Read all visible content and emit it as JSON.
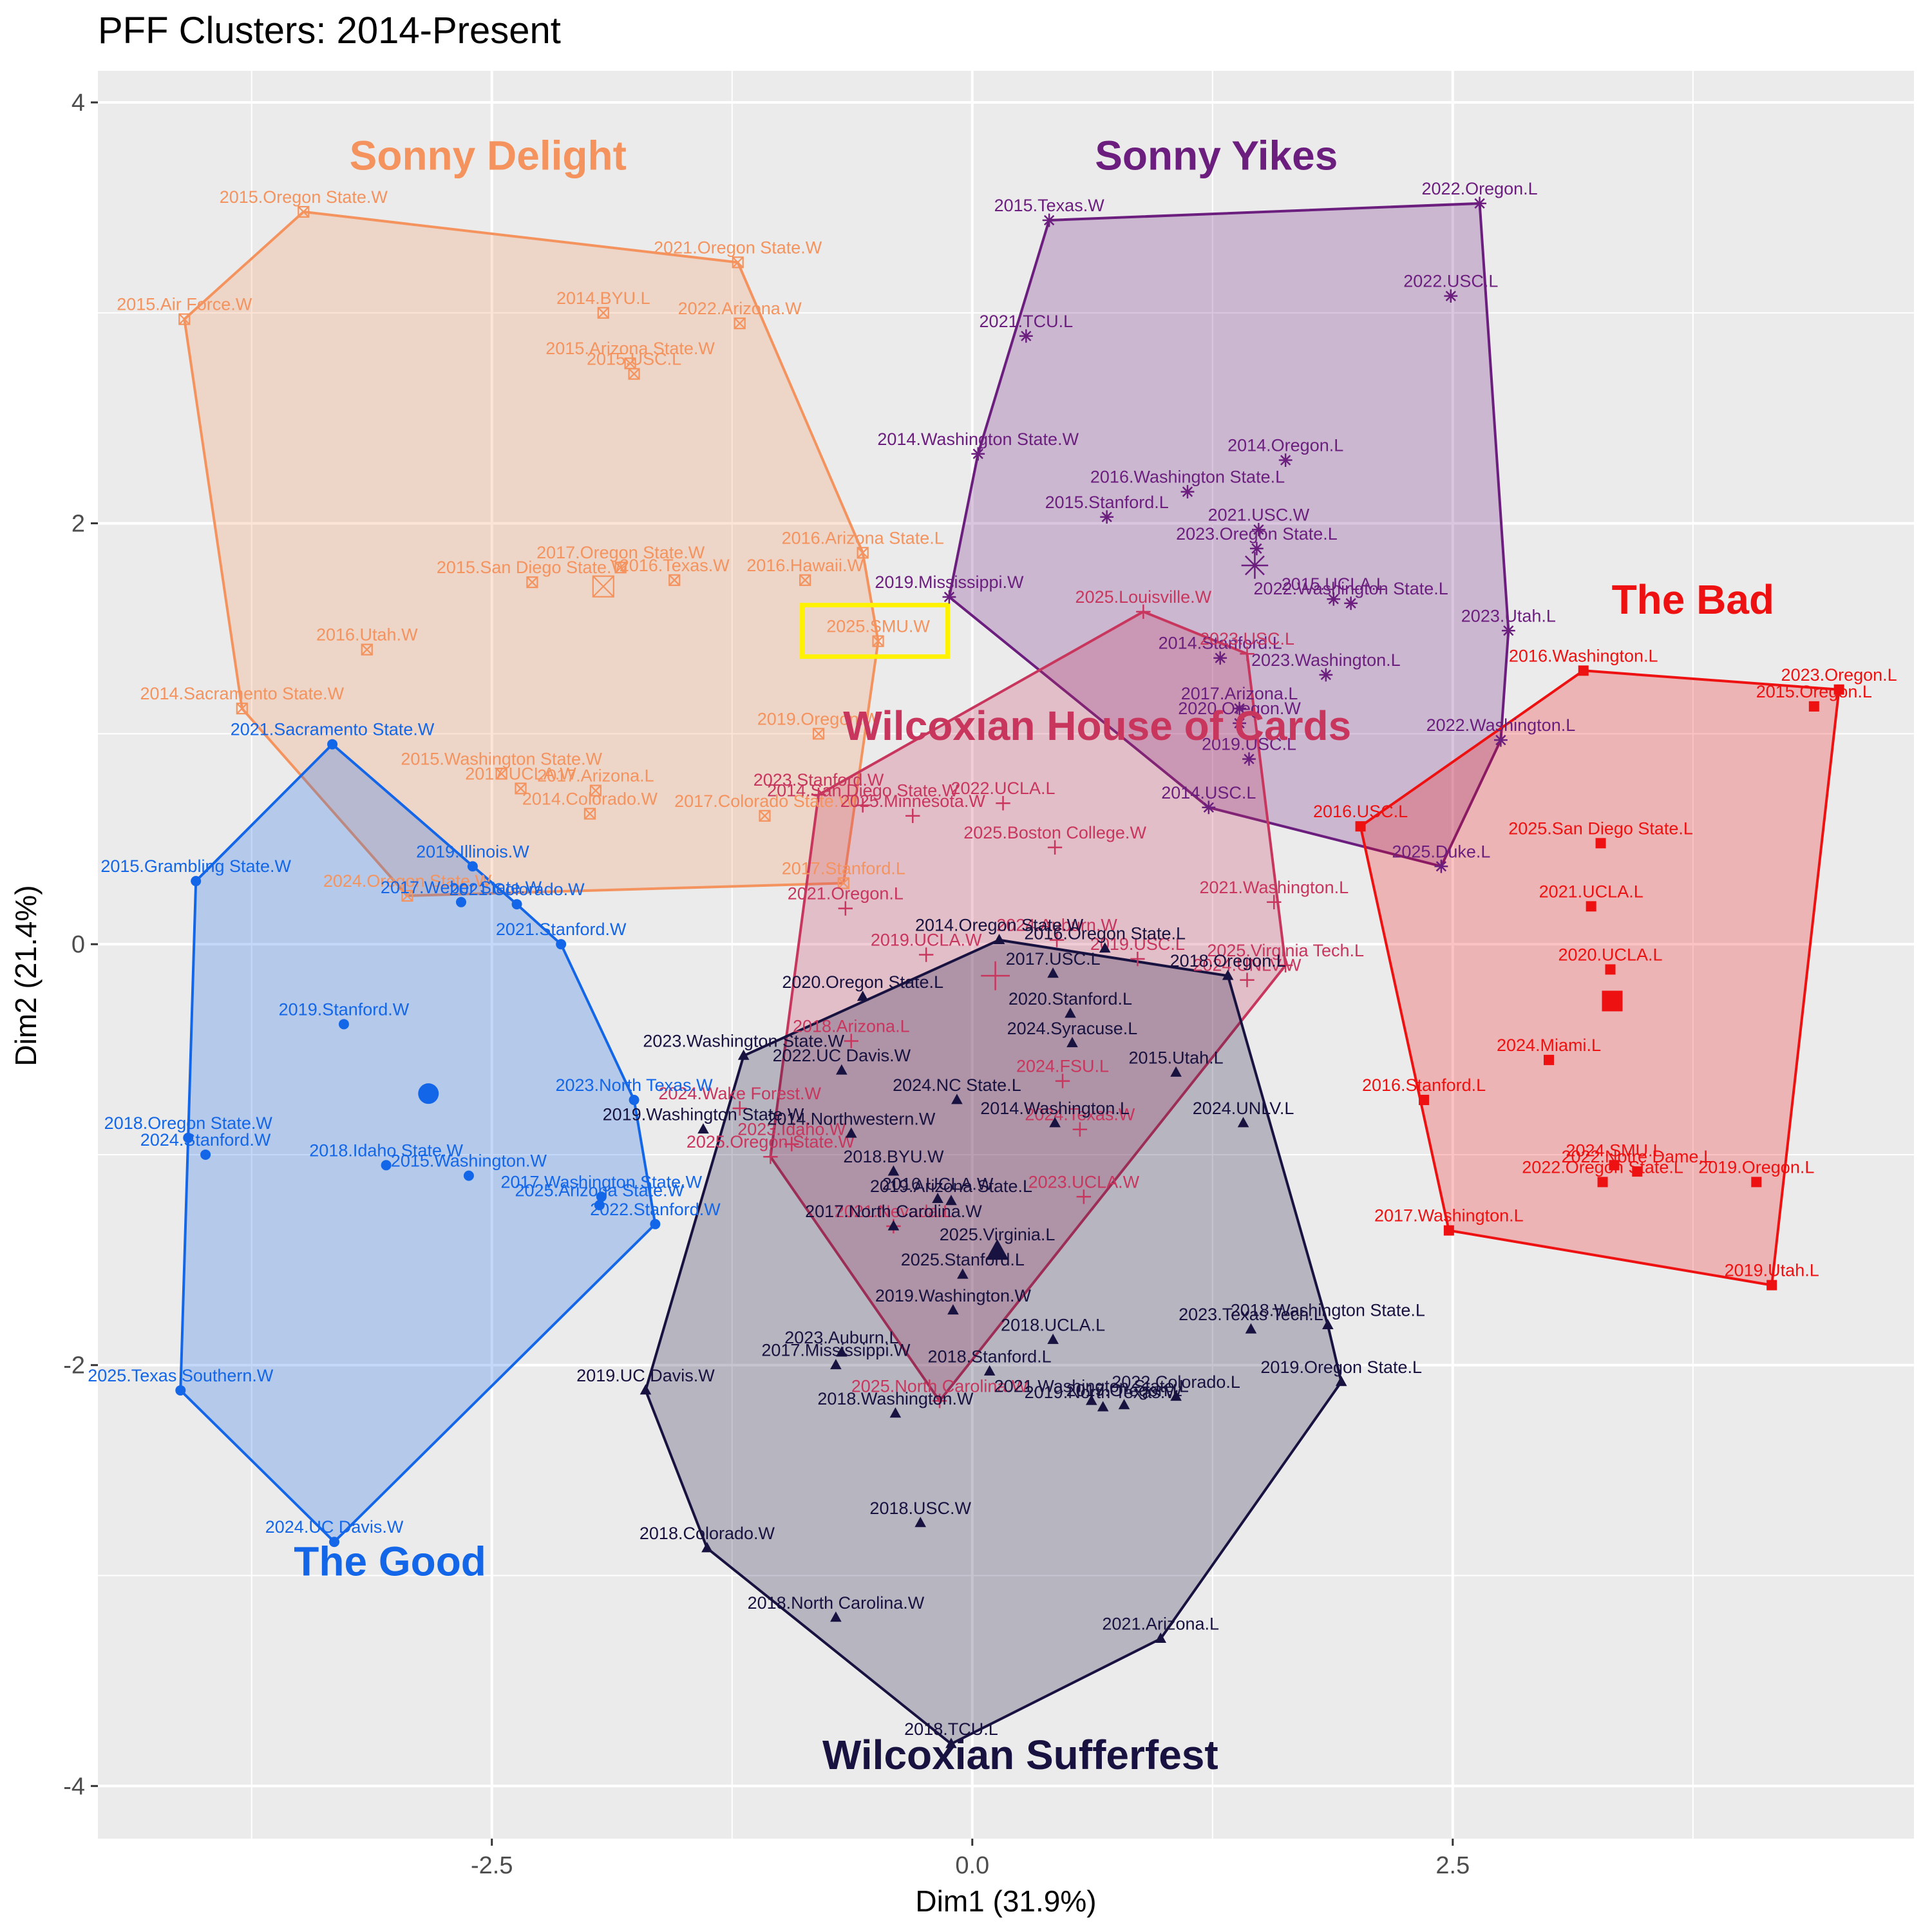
{
  "chart_data": {
    "type": "scatter",
    "title": "PFF Clusters: 2014-Present",
    "xlabel": "Dim1 (31.9%)",
    "ylabel": "Dim2 (21.4%)",
    "xlim": [
      -4.55,
      4.9
    ],
    "ylim": [
      -4.25,
      4.15
    ],
    "x_ticks": [
      -2.5,
      0.0,
      2.5
    ],
    "x_tick_labels": [
      "-2.5",
      "0.0",
      "2.5"
    ],
    "y_ticks": [
      -4,
      -2,
      0,
      2,
      4
    ],
    "y_tick_labels": [
      "-4",
      "-2",
      "0",
      "2",
      "4"
    ],
    "grid": true,
    "highlight_label": "2025.SMU.W",
    "series": [
      {
        "name": "Sonny Delight",
        "color": "#F4935E",
        "marker": "boxx",
        "centroid": [
          -1.92,
          1.7
        ],
        "points": [
          {
            "label": "2015.Oregon State.W",
            "x": -3.48,
            "y": 3.48
          },
          {
            "label": "2021.Oregon State.W",
            "x": -1.22,
            "y": 3.24
          },
          {
            "label": "2015.Air Force.W",
            "x": -4.1,
            "y": 2.97
          },
          {
            "label": "2014.BYU.L",
            "x": -1.92,
            "y": 3.0
          },
          {
            "label": "2022.Arizona.W",
            "x": -1.21,
            "y": 2.95
          },
          {
            "label": "2015.Arizona State.W",
            "x": -1.78,
            "y": 2.76
          },
          {
            "label": "2015.USC.L",
            "x": -1.76,
            "y": 2.71
          },
          {
            "label": "2016.Arizona State.L",
            "x": -0.57,
            "y": 1.86
          },
          {
            "label": "2017.Oregon State.W",
            "x": -1.83,
            "y": 1.79
          },
          {
            "label": "2016.Texas.W",
            "x": -1.55,
            "y": 1.73
          },
          {
            "label": "2015.San Diego State.W",
            "x": -2.29,
            "y": 1.72
          },
          {
            "label": "2016.Hawaii.W",
            "x": -0.87,
            "y": 1.73
          },
          {
            "label": "2025.SMU.W",
            "x": -0.49,
            "y": 1.44
          },
          {
            "label": "2016.Utah.W",
            "x": -3.15,
            "y": 1.4
          },
          {
            "label": "2014.Sacramento State.W",
            "x": -3.8,
            "y": 1.12
          },
          {
            "label": "2019.Oregon.W",
            "x": -0.8,
            "y": 1.0
          },
          {
            "label": "2015.Washington State.W",
            "x": -2.45,
            "y": 0.81
          },
          {
            "label": "2017.UCLA.W",
            "x": -2.35,
            "y": 0.74
          },
          {
            "label": "2017.Arizona.L",
            "x": -1.96,
            "y": 0.73
          },
          {
            "label": "2014.Colorado.W",
            "x": -1.99,
            "y": 0.62
          },
          {
            "label": "2017.Colorado State.W",
            "x": -1.08,
            "y": 0.61
          },
          {
            "label": "2017.Stanford.L",
            "x": -0.67,
            "y": 0.29
          },
          {
            "label": "2024.Oregon State.W",
            "x": -2.94,
            "y": 0.23
          }
        ]
      },
      {
        "name": "Sonny Yikes",
        "color": "#6B1E7E",
        "marker": "star",
        "centroid": [
          1.47,
          1.8
        ],
        "points": [
          {
            "label": "2015.Texas.W",
            "x": 0.4,
            "y": 3.44
          },
          {
            "label": "2022.Oregon.L",
            "x": 2.64,
            "y": 3.52
          },
          {
            "label": "2022.USC.L",
            "x": 2.49,
            "y": 3.08
          },
          {
            "label": "2021.TCU.L",
            "x": 0.28,
            "y": 2.89
          },
          {
            "label": "2014.Washington State.W",
            "x": 0.03,
            "y": 2.33
          },
          {
            "label": "2014.Oregon.L",
            "x": 1.63,
            "y": 2.3
          },
          {
            "label": "2016.Washington State.L",
            "x": 1.12,
            "y": 2.15
          },
          {
            "label": "2015.Stanford.L",
            "x": 0.7,
            "y": 2.03
          },
          {
            "label": "2021.USC.W",
            "x": 1.49,
            "y": 1.97
          },
          {
            "label": "2023.Oregon State.L",
            "x": 1.48,
            "y": 1.88
          },
          {
            "label": "2019.Mississippi.W",
            "x": -0.12,
            "y": 1.65
          },
          {
            "label": "2015.UCLA.L",
            "x": 1.88,
            "y": 1.64
          },
          {
            "label": "2022.Washington State.L",
            "x": 1.97,
            "y": 1.62
          },
          {
            "label": "2023.Utah.L",
            "x": 2.79,
            "y": 1.49
          },
          {
            "label": "2014.Stanford.L",
            "x": 1.29,
            "y": 1.36
          },
          {
            "label": "2023.Washington.L",
            "x": 1.84,
            "y": 1.28
          },
          {
            "label": "2017.Arizona.L",
            "x": 1.39,
            "y": 1.12
          },
          {
            "label": "2020.Oregon.W",
            "x": 1.39,
            "y": 1.05
          },
          {
            "label": "2019.USC.L",
            "x": 1.44,
            "y": 0.88
          },
          {
            "label": "2022.Washington.L",
            "x": 2.75,
            "y": 0.97
          },
          {
            "label": "2014.USC.L",
            "x": 1.23,
            "y": 0.65
          },
          {
            "label": "2025.Duke.L",
            "x": 2.44,
            "y": 0.37
          }
        ]
      },
      {
        "name": "Wilcoxian House of Cards",
        "color": "#C8365E",
        "marker": "plus",
        "centroid": [
          0.12,
          -0.15
        ],
        "points": [
          {
            "label": "2025.Louisville.W",
            "x": 0.89,
            "y": 1.58
          },
          {
            "label": "2023.USC.L",
            "x": 1.43,
            "y": 1.38
          },
          {
            "label": "2023.Stanford.W",
            "x": -0.8,
            "y": 0.71
          },
          {
            "label": "2014.San Diego State.W",
            "x": -0.57,
            "y": 0.66
          },
          {
            "label": "2022.UCLA.L",
            "x": 0.16,
            "y": 0.67
          },
          {
            "label": "2025.Minnesota.W",
            "x": -0.31,
            "y": 0.61
          },
          {
            "label": "2025.Boston College.W",
            "x": 0.43,
            "y": 0.46
          },
          {
            "label": "2021.Oregon.L",
            "x": -0.66,
            "y": 0.17
          },
          {
            "label": "2021.Washington.L",
            "x": 1.57,
            "y": 0.2
          },
          {
            "label": "2024.Auburn.W",
            "x": 0.44,
            "y": 0.02
          },
          {
            "label": "2019.UCLA.W",
            "x": -0.24,
            "y": -0.05
          },
          {
            "label": "2019.USC.L",
            "x": 0.86,
            "y": -0.07
          },
          {
            "label": "2025.Virginia Tech.L",
            "x": 1.63,
            "y": -0.1
          },
          {
            "label": "2024.UNLV.W",
            "x": 1.43,
            "y": -0.17
          },
          {
            "label": "2018.Arizona.L",
            "x": -0.63,
            "y": -0.46
          },
          {
            "label": "2024.FSU.L",
            "x": 0.47,
            "y": -0.65
          },
          {
            "label": "2024.Wake Forest.W",
            "x": -1.21,
            "y": -0.78
          },
          {
            "label": "2023.Idaho.W",
            "x": -0.94,
            "y": -0.95
          },
          {
            "label": "2025.Oregon State.W",
            "x": -1.05,
            "y": -1.01
          },
          {
            "label": "2024.Texas.W",
            "x": 0.56,
            "y": -0.88
          },
          {
            "label": "2023.UCLA.W",
            "x": 0.58,
            "y": -1.2
          },
          {
            "label": "2021.Nevada.L",
            "x": -0.41,
            "y": -1.34
          },
          {
            "label": "2025.North Carolina.W",
            "x": -0.17,
            "y": -2.17
          }
        ]
      },
      {
        "name": "The Bad",
        "color": "#EE1111",
        "marker": "square",
        "centroid": [
          3.33,
          -0.27
        ],
        "points": [
          {
            "label": "2016.Washington.L",
            "x": 3.18,
            "y": 1.3
          },
          {
            "label": "2023.Oregon.L",
            "x": 4.51,
            "y": 1.21
          },
          {
            "label": "2015.Oregon.L",
            "x": 4.38,
            "y": 1.13
          },
          {
            "label": "2016.USC.L",
            "x": 2.02,
            "y": 0.56
          },
          {
            "label": "2025.San Diego State.L",
            "x": 3.27,
            "y": 0.48
          },
          {
            "label": "2021.UCLA.L",
            "x": 3.22,
            "y": 0.18
          },
          {
            "label": "2020.UCLA.L",
            "x": 3.32,
            "y": -0.12
          },
          {
            "label": "2024.Miami.L",
            "x": 3.0,
            "y": -0.55
          },
          {
            "label": "2016.Stanford.L",
            "x": 2.35,
            "y": -0.74
          },
          {
            "label": "2024.SMU.L",
            "x": 3.34,
            "y": -1.05
          },
          {
            "label": "2022.Notre Dame.L",
            "x": 3.46,
            "y": -1.08
          },
          {
            "label": "2022.Oregon State.L",
            "x": 3.28,
            "y": -1.13
          },
          {
            "label": "2019.Oregon.L",
            "x": 4.08,
            "y": -1.13
          },
          {
            "label": "2017.Washington.L",
            "x": 2.48,
            "y": -1.36
          },
          {
            "label": "2019.Utah.L",
            "x": 4.16,
            "y": -1.62
          }
        ]
      },
      {
        "name": "The Good",
        "color": "#1366E8",
        "marker": "circle",
        "centroid": [
          -2.83,
          -0.71
        ],
        "points": [
          {
            "label": "2021.Sacramento State.W",
            "x": -3.33,
            "y": 0.95
          },
          {
            "label": "2015.Grambling State.W",
            "x": -4.04,
            "y": 0.3
          },
          {
            "label": "2019.Illinois.W",
            "x": -2.6,
            "y": 0.37
          },
          {
            "label": "2017.Weber State.W",
            "x": -2.66,
            "y": 0.2
          },
          {
            "label": "2021.Colorado.W",
            "x": -2.37,
            "y": 0.19
          },
          {
            "label": "2021.Stanford.W",
            "x": -2.14,
            "y": 0.0
          },
          {
            "label": "2019.Stanford.W",
            "x": -3.27,
            "y": -0.38
          },
          {
            "label": "2023.North Texas.W",
            "x": -1.76,
            "y": -0.74
          },
          {
            "label": "2018.Oregon State.W",
            "x": -4.08,
            "y": -0.92
          },
          {
            "label": "2024.Stanford.W",
            "x": -3.99,
            "y": -1.0
          },
          {
            "label": "2018.Idaho State.W",
            "x": -3.05,
            "y": -1.05
          },
          {
            "label": "2015.Washington.W",
            "x": -2.62,
            "y": -1.1
          },
          {
            "label": "2017.Washington State.W",
            "x": -1.93,
            "y": -1.2
          },
          {
            "label": "2025.Arizona State.W",
            "x": -1.94,
            "y": -1.24
          },
          {
            "label": "2022.Stanford.W",
            "x": -1.65,
            "y": -1.33
          },
          {
            "label": "2025.Texas Southern.W",
            "x": -4.12,
            "y": -2.12
          },
          {
            "label": "2024.UC Davis.W",
            "x": -3.32,
            "y": -2.84
          }
        ]
      },
      {
        "name": "Wilcoxian Sufferfest",
        "color": "#17123F",
        "marker": "triangle",
        "centroid": [
          0.13,
          -1.46
        ],
        "points": [
          {
            "label": "2014.Oregon State.W",
            "x": 0.14,
            "y": 0.02
          },
          {
            "label": "2016.Oregon State.L",
            "x": 0.69,
            "y": -0.02
          },
          {
            "label": "2017.USC.L",
            "x": 0.42,
            "y": -0.14
          },
          {
            "label": "2018.Oregon.L",
            "x": 1.33,
            "y": -0.15
          },
          {
            "label": "2020.Oregon State.L",
            "x": -0.57,
            "y": -0.25
          },
          {
            "label": "2020.Stanford.L",
            "x": 0.51,
            "y": -0.33
          },
          {
            "label": "2024.Syracuse.L",
            "x": 0.52,
            "y": -0.47
          },
          {
            "label": "2023.Washington State.W",
            "x": -1.19,
            "y": -0.53
          },
          {
            "label": "2022.UC Davis.W",
            "x": -0.68,
            "y": -0.6
          },
          {
            "label": "2015.Utah.L",
            "x": 1.06,
            "y": -0.61
          },
          {
            "label": "2024.NC State.L",
            "x": -0.08,
            "y": -0.74
          },
          {
            "label": "2019.Washington State.W",
            "x": -1.4,
            "y": -0.88
          },
          {
            "label": "2014.Northwestern.W",
            "x": -0.63,
            "y": -0.9
          },
          {
            "label": "2014.Washington.L",
            "x": 0.43,
            "y": -0.85
          },
          {
            "label": "2024.UNLV.L",
            "x": 1.41,
            "y": -0.85
          },
          {
            "label": "2018.BYU.W",
            "x": -0.41,
            "y": -1.08
          },
          {
            "label": "2016.UCLA.W",
            "x": -0.18,
            "y": -1.21
          },
          {
            "label": "2019.Arizona State.L",
            "x": -0.11,
            "y": -1.22
          },
          {
            "label": "2017.North Carolina.W",
            "x": -0.41,
            "y": -1.34
          },
          {
            "label": "2025.Virginia.L",
            "x": 0.13,
            "y": -1.45
          },
          {
            "label": "2025.Stanford.L",
            "x": -0.05,
            "y": -1.57
          },
          {
            "label": "2019.Washington.W",
            "x": -0.1,
            "y": -1.74
          },
          {
            "label": "2018.UCLA.L",
            "x": 0.42,
            "y": -1.88
          },
          {
            "label": "2023.Texas Tech.L",
            "x": 1.45,
            "y": -1.83
          },
          {
            "label": "2018.Washington State.L",
            "x": 1.85,
            "y": -1.81
          },
          {
            "label": "2023.Auburn.L",
            "x": -0.68,
            "y": -1.94
          },
          {
            "label": "2017.Mississippi.W",
            "x": -0.71,
            "y": -2.0
          },
          {
            "label": "2018.Stanford.L",
            "x": 0.09,
            "y": -2.03
          },
          {
            "label": "2021.Washington State.L",
            "x": 0.62,
            "y": -2.17
          },
          {
            "label": "2017.Oregon.L",
            "x": 0.79,
            "y": -2.19
          },
          {
            "label": "2019.North Texas.W",
            "x": 0.68,
            "y": -2.2
          },
          {
            "label": "2022.Colorado.L",
            "x": 1.06,
            "y": -2.15
          },
          {
            "label": "2019.Oregon State.L",
            "x": 1.92,
            "y": -2.08
          },
          {
            "label": "2019.UC Davis.W",
            "x": -1.7,
            "y": -2.12
          },
          {
            "label": "2018.Washington.W",
            "x": -0.4,
            "y": -2.23
          },
          {
            "label": "2018.USC.W",
            "x": -0.27,
            "y": -2.75
          },
          {
            "label": "2018.Colorado.W",
            "x": -1.38,
            "y": -2.87
          },
          {
            "label": "2018.North Carolina.W",
            "x": -0.71,
            "y": -3.2
          },
          {
            "label": "2021.Arizona.L",
            "x": 0.98,
            "y": -3.3
          },
          {
            "label": "2018.TCU.L",
            "x": -0.11,
            "y": -3.8
          }
        ]
      }
    ],
    "hulls": [
      [
        "2015.Oregon State.W",
        "2021.Oregon State.W",
        "2016.Arizona State.L",
        "2025.SMU.W",
        "2017.Stanford.L",
        "2024.Oregon State.W",
        "2014.Sacramento State.W",
        "2015.Air Force.W"
      ],
      [
        "2015.Texas.W",
        "2022.Oregon.L",
        "2023.Utah.L",
        "2022.Washington.L",
        "2025.Duke.L",
        "2014.USC.L",
        "2019.Mississippi.W",
        "2014.Washington State.W"
      ],
      [
        "2025.Louisville.W",
        "2023.USC.L",
        "2025.Virginia Tech.L",
        "2025.North Carolina.W",
        "2025.Oregon State.W",
        "2023.Stanford.W"
      ],
      [
        "2016.Washington.L",
        "2023.Oregon.L",
        "2019.Utah.L",
        "2017.Washington.L",
        "2016.USC.L"
      ],
      [
        "2021.Sacramento State.W",
        "2021.Colorado.W",
        "2021.Stanford.W",
        "2023.North Texas.W",
        "2022.Stanford.W",
        "2024.UC Davis.W",
        "2025.Texas Southern.W",
        "2015.Grambling State.W"
      ],
      [
        "2014.Oregon State.W",
        "2018.Oregon.L",
        "2018.Washington State.L",
        "2019.Oregon State.L",
        "2021.Arizona.L",
        "2018.TCU.L",
        "2018.Colorado.W",
        "2019.UC Davis.W",
        "2023.Washington State.W"
      ]
    ],
    "cluster_labels": [
      {
        "text": "Sonny Delight",
        "x": -2.52,
        "y": 3.68,
        "color": "#F4935E"
      },
      {
        "text": "Sonny Yikes",
        "x": 1.27,
        "y": 3.68,
        "color": "#6B1E7E"
      },
      {
        "text": "Wilcoxian House of Cards",
        "x": 0.65,
        "y": 0.97,
        "color": "#C8365E"
      },
      {
        "text": "The Bad",
        "x": 3.75,
        "y": 1.57,
        "color": "#EE1111"
      },
      {
        "text": "The Good",
        "x": -3.03,
        "y": -3.0,
        "color": "#1366E8"
      },
      {
        "text": "Wilcoxian Sufferfest",
        "x": 0.25,
        "y": -3.92,
        "color": "#17123F"
      }
    ]
  }
}
